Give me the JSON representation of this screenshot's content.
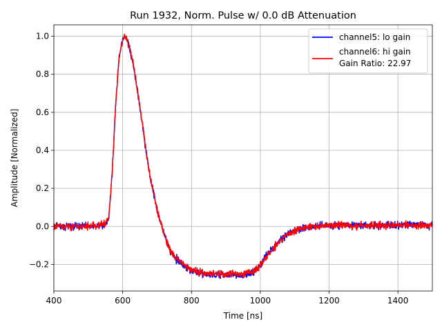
{
  "chart_data": {
    "type": "line",
    "title": "Run 1932, Norm. Pulse w/ 0.0 dB Attenuation",
    "xlabel": "Time [ns]",
    "ylabel": "Amplitude [Normalized]",
    "xlim": [
      400,
      1500
    ],
    "ylim": [
      -0.34,
      1.06
    ],
    "xticks": [
      400,
      600,
      800,
      1000,
      1200,
      1400
    ],
    "yticks": [
      -0.2,
      0.0,
      0.2,
      0.4,
      0.6,
      0.8,
      1.0
    ],
    "ytick_labels": [
      "−0.2",
      "0.0",
      "0.2",
      "0.4",
      "0.6",
      "0.8",
      "1.0"
    ],
    "grid": true,
    "legend_position": "top-right",
    "legend_extra": "Gain Ratio: 22.97",
    "noise_amplitude": 0.012,
    "series": [
      {
        "name": "channel5: lo gain",
        "color": "#0000ff",
        "x": [
          400,
          450,
          500,
          550,
          560,
          570,
          580,
          590,
          600,
          605,
          610,
          620,
          630,
          640,
          650,
          660,
          670,
          680,
          690,
          700,
          710,
          720,
          730,
          740,
          750,
          760,
          780,
          800,
          820,
          850,
          880,
          900,
          930,
          960,
          980,
          1000,
          1020,
          1040,
          1060,
          1080,
          1100,
          1120,
          1150,
          1200,
          1250,
          1300,
          1350,
          1400,
          1450,
          1500
        ],
        "y": [
          0.0,
          0.0,
          0.0,
          0.01,
          0.05,
          0.3,
          0.65,
          0.9,
          0.98,
          1.0,
          0.99,
          0.94,
          0.86,
          0.75,
          0.62,
          0.5,
          0.37,
          0.26,
          0.17,
          0.09,
          0.02,
          -0.04,
          -0.09,
          -0.13,
          -0.16,
          -0.18,
          -0.21,
          -0.23,
          -0.245,
          -0.255,
          -0.26,
          -0.255,
          -0.26,
          -0.255,
          -0.24,
          -0.2,
          -0.15,
          -0.11,
          -0.07,
          -0.04,
          -0.02,
          -0.01,
          0.0,
          0.005,
          0.005,
          0.005,
          0.005,
          0.005,
          0.01,
          0.005
        ]
      },
      {
        "name": "channel6: hi gain",
        "color": "#ff0000",
        "x": [
          400,
          450,
          500,
          550,
          560,
          570,
          580,
          590,
          600,
          605,
          610,
          620,
          630,
          640,
          650,
          660,
          670,
          680,
          690,
          700,
          710,
          720,
          730,
          740,
          750,
          760,
          780,
          800,
          820,
          850,
          880,
          900,
          930,
          960,
          980,
          1000,
          1020,
          1040,
          1060,
          1080,
          1100,
          1120,
          1150,
          1200,
          1250,
          1300,
          1350,
          1400,
          1450,
          1500
        ],
        "y": [
          0.0,
          0.0,
          0.0,
          0.01,
          0.05,
          0.3,
          0.65,
          0.9,
          0.98,
          1.0,
          0.99,
          0.94,
          0.86,
          0.75,
          0.62,
          0.5,
          0.37,
          0.26,
          0.17,
          0.09,
          0.02,
          -0.04,
          -0.09,
          -0.13,
          -0.155,
          -0.175,
          -0.205,
          -0.225,
          -0.24,
          -0.25,
          -0.25,
          -0.25,
          -0.25,
          -0.245,
          -0.235,
          -0.2,
          -0.15,
          -0.11,
          -0.07,
          -0.04,
          -0.02,
          -0.01,
          0.0,
          0.005,
          0.005,
          0.005,
          0.005,
          0.005,
          0.005,
          0.005
        ]
      }
    ]
  }
}
